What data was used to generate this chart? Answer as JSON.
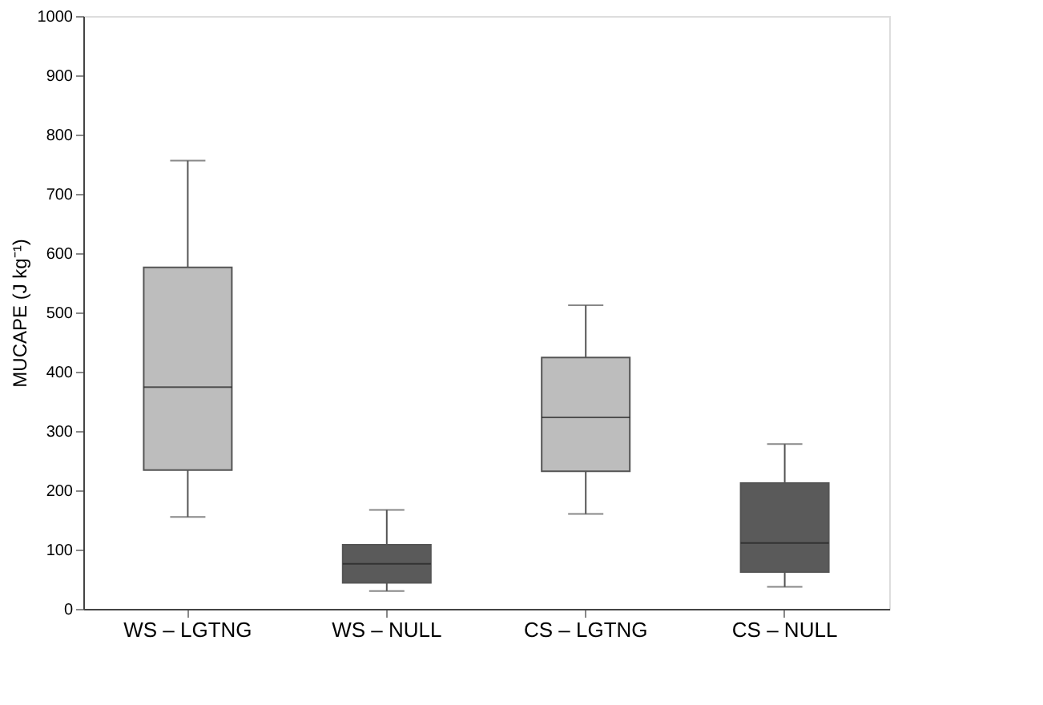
{
  "chart_data": {
    "type": "box",
    "ylabel": "MUCAPE (J kg⁻¹)",
    "categories": [
      "WS – LGTNG",
      "WS – NULL",
      "CS – LGTNG",
      "CS – NULL"
    ],
    "boxes": [
      {
        "low": 155,
        "q1": 234,
        "median": 374,
        "q3": 576,
        "high": 756
      },
      {
        "low": 30,
        "q1": 44,
        "median": 76,
        "q3": 108,
        "high": 167
      },
      {
        "low": 160,
        "q1": 232,
        "median": 323,
        "q3": 424,
        "high": 512
      },
      {
        "low": 37,
        "q1": 62,
        "median": 111,
        "q3": 212,
        "high": 278
      }
    ],
    "colors": [
      "#bdbdbd",
      "#5a5a5a",
      "#bdbdbd",
      "#5a5a5a"
    ],
    "ylim": [
      0,
      1000
    ],
    "yticks": [
      0,
      100,
      200,
      300,
      400,
      500,
      600,
      700,
      800,
      900,
      1000
    ],
    "grid": false
  }
}
